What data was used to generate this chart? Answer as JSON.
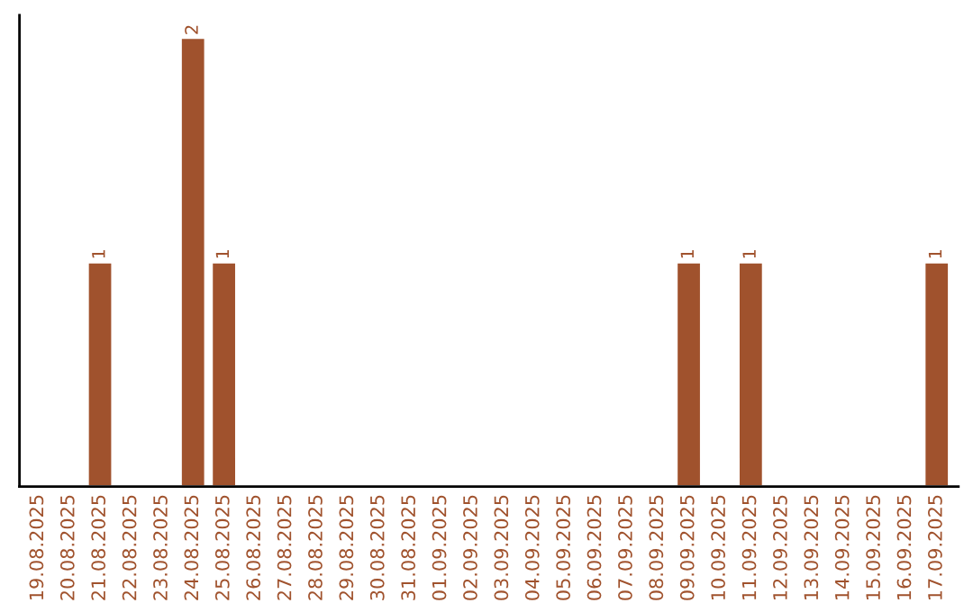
{
  "chart_data": {
    "type": "bar",
    "categories": [
      "19.08.2025",
      "20.08.2025",
      "21.08.2025",
      "22.08.2025",
      "23.08.2025",
      "24.08.2025",
      "25.08.2025",
      "26.08.2025",
      "27.08.2025",
      "28.08.2025",
      "29.08.2025",
      "30.08.2025",
      "31.08.2025",
      "01.09.2025",
      "02.09.2025",
      "03.09.2025",
      "04.09.2025",
      "05.09.2025",
      "06.09.2025",
      "07.09.2025",
      "08.09.2025",
      "09.09.2025",
      "10.09.2025",
      "11.09.2025",
      "12.09.2025",
      "13.09.2025",
      "14.09.2025",
      "15.09.2025",
      "16.09.2025",
      "17.09.2025"
    ],
    "values": [
      0,
      0,
      1,
      0,
      0,
      2,
      1,
      0,
      0,
      0,
      0,
      0,
      0,
      0,
      0,
      0,
      0,
      0,
      0,
      0,
      0,
      1,
      0,
      1,
      0,
      0,
      0,
      0,
      0,
      1
    ],
    "value_labels": [
      null,
      null,
      "1",
      null,
      null,
      "2",
      "1",
      null,
      null,
      null,
      null,
      null,
      null,
      null,
      null,
      null,
      null,
      null,
      null,
      null,
      null,
      "1",
      null,
      "1",
      null,
      null,
      null,
      null,
      null,
      "1"
    ],
    "color": "#a0522d",
    "ylim": [
      0,
      2.1
    ],
    "tick_labels": "x",
    "grid": false,
    "legend": false
  }
}
